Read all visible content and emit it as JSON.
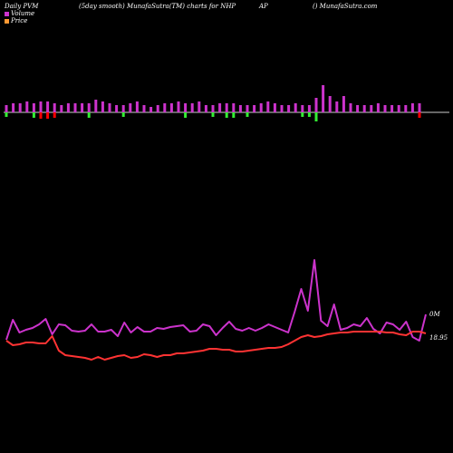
{
  "header": {
    "left": "Daily PVM",
    "center": "(5day smooth) MunafaSutra(TM) charts for NHP",
    "mid_right": "AP",
    "right": "() MunafaSutra.com"
  },
  "legend": [
    {
      "label": "Volume",
      "color": "#cc33cc"
    },
    {
      "label": "Price",
      "color": "#ff3333"
    }
  ],
  "colors": {
    "background": "#000000",
    "positive_bar": "#cc33cc",
    "negative_bar": "#ff0000",
    "neutral_bar": "#33ee33",
    "volume_line": "#cc33cc",
    "price_line": "#ff3333",
    "baseline": "#cccccc"
  },
  "chart_data": {
    "type": "line",
    "title": "",
    "xlabel": "",
    "ylabel": "",
    "bars": [
      {
        "v": 4,
        "c": "g"
      },
      {
        "v": 5,
        "c": "m"
      },
      {
        "v": 5,
        "c": "m"
      },
      {
        "v": 6,
        "c": "m"
      },
      {
        "v": 5,
        "c": "g"
      },
      {
        "v": 6,
        "c": "r"
      },
      {
        "v": 6,
        "c": "r"
      },
      {
        "v": 5,
        "c": "r"
      },
      {
        "v": 4,
        "c": "m"
      },
      {
        "v": 5,
        "c": "m"
      },
      {
        "v": 5,
        "c": "m"
      },
      {
        "v": 5,
        "c": "m"
      },
      {
        "v": 5,
        "c": "g"
      },
      {
        "v": 7,
        "c": "m"
      },
      {
        "v": 6,
        "c": "m"
      },
      {
        "v": 5,
        "c": "m"
      },
      {
        "v": 4,
        "c": "m"
      },
      {
        "v": 4,
        "c": "g"
      },
      {
        "v": 5,
        "c": "m"
      },
      {
        "v": 6,
        "c": "m"
      },
      {
        "v": 4,
        "c": "m"
      },
      {
        "v": 3,
        "c": "m"
      },
      {
        "v": 4,
        "c": "m"
      },
      {
        "v": 5,
        "c": "m"
      },
      {
        "v": 5,
        "c": "m"
      },
      {
        "v": 6,
        "c": "m"
      },
      {
        "v": 5,
        "c": "g"
      },
      {
        "v": 5,
        "c": "m"
      },
      {
        "v": 6,
        "c": "m"
      },
      {
        "v": 4,
        "c": "m"
      },
      {
        "v": 4,
        "c": "g"
      },
      {
        "v": 5,
        "c": "m"
      },
      {
        "v": 5,
        "c": "g"
      },
      {
        "v": 5,
        "c": "g"
      },
      {
        "v": 4,
        "c": "m"
      },
      {
        "v": 4,
        "c": "g"
      },
      {
        "v": 4,
        "c": "m"
      },
      {
        "v": 5,
        "c": "m"
      },
      {
        "v": 6,
        "c": "m"
      },
      {
        "v": 5,
        "c": "m"
      },
      {
        "v": 4,
        "c": "m"
      },
      {
        "v": 4,
        "c": "m"
      },
      {
        "v": 5,
        "c": "m"
      },
      {
        "v": 4,
        "c": "g"
      },
      {
        "v": 4,
        "c": "g"
      },
      {
        "v": 8,
        "c": "g"
      },
      {
        "v": 15,
        "c": "m"
      },
      {
        "v": 9,
        "c": "m"
      },
      {
        "v": 6,
        "c": "m"
      },
      {
        "v": 9,
        "c": "m"
      },
      {
        "v": 5,
        "c": "m"
      },
      {
        "v": 4,
        "c": "m"
      },
      {
        "v": 4,
        "c": "m"
      },
      {
        "v": 4,
        "c": "m"
      },
      {
        "v": 5,
        "c": "m"
      },
      {
        "v": 4,
        "c": "m"
      },
      {
        "v": 4,
        "c": "m"
      },
      {
        "v": 4,
        "c": "m"
      },
      {
        "v": 4,
        "c": "m"
      },
      {
        "v": 5,
        "c": "m"
      },
      {
        "v": 5,
        "c": "r"
      }
    ],
    "series": [
      {
        "name": "Volume",
        "values": [
          375,
          353,
          367,
          364,
          362,
          358,
          352,
          369,
          358,
          359,
          365,
          366,
          365,
          358,
          366,
          366,
          364,
          371,
          356,
          367,
          361,
          366,
          366,
          362,
          363,
          361,
          360,
          359,
          366,
          365,
          358,
          360,
          370,
          362,
          355,
          363,
          365,
          362,
          365,
          362,
          358,
          361,
          364,
          367,
          344,
          319,
          343,
          287,
          354,
          360,
          336,
          364,
          362,
          358,
          360,
          351,
          363,
          368,
          356,
          358,
          364,
          355,
          372,
          376,
          347
        ]
      },
      {
        "name": "Price",
        "values": [
          376,
          381,
          380,
          378,
          378,
          379,
          379,
          371,
          387,
          392,
          393,
          394,
          395,
          397,
          394,
          397,
          395,
          393,
          392,
          395,
          394,
          391,
          392,
          394,
          392,
          392,
          390,
          390,
          389,
          388,
          387,
          385,
          385,
          386,
          386,
          388,
          388,
          387,
          386,
          385,
          384,
          384,
          383,
          380,
          376,
          372,
          370,
          372,
          371,
          369,
          368,
          367,
          367,
          366,
          366,
          366,
          366,
          366,
          367,
          367,
          369,
          370,
          366,
          366,
          368
        ]
      }
    ],
    "end_labels": {
      "volume": "0M",
      "price": "18.95"
    }
  }
}
